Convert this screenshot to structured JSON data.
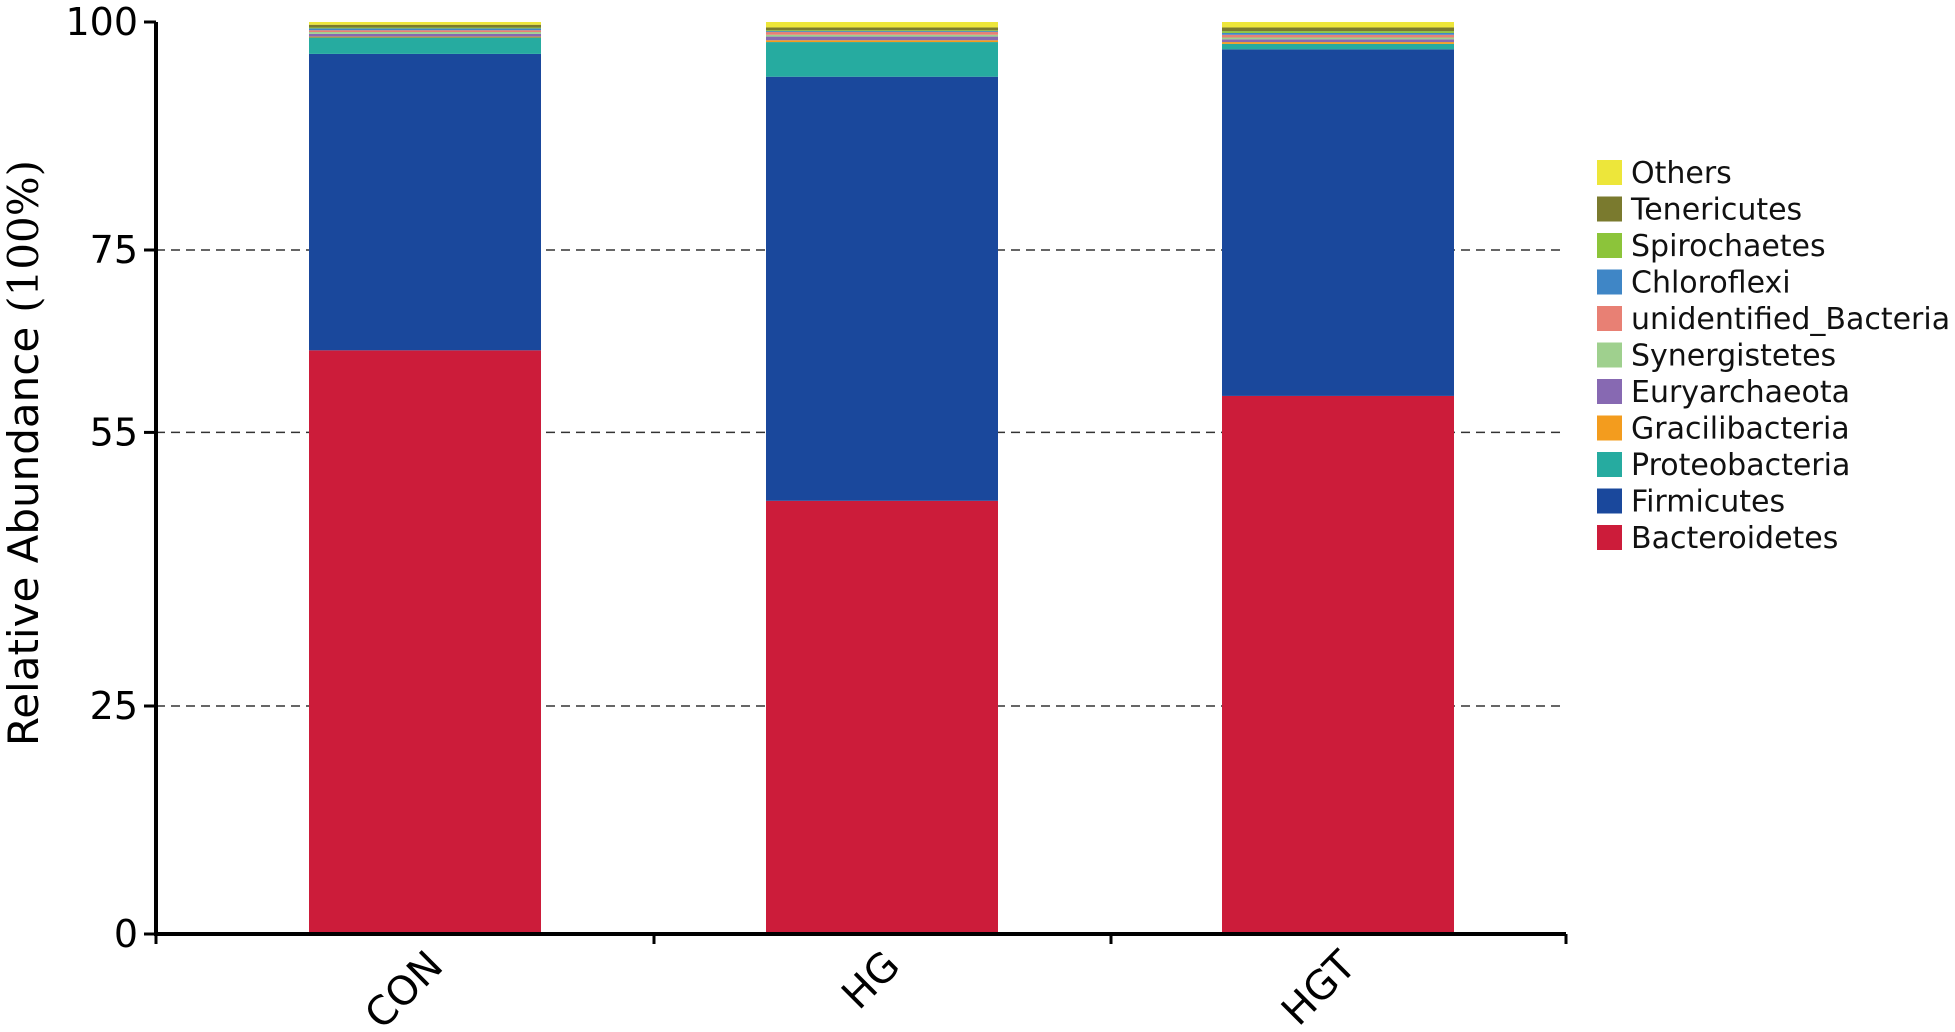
{
  "chart_data": {
    "type": "bar",
    "stacked": true,
    "categories": [
      "CON",
      "HG",
      "HGT"
    ],
    "ylabel": "Relative Abundance",
    "ylabel_unit": "(100%)",
    "yticks": [
      0,
      25,
      55,
      75,
      100
    ],
    "ylim": [
      0,
      100
    ],
    "grid": "dashed horizontal at 25, 55, 75",
    "legend_position": "right",
    "series": [
      {
        "name": "Bacteroidetes",
        "color": "#CC1C3A",
        "values": [
          64.0,
          47.5,
          59.0
        ]
      },
      {
        "name": "Firmicutes",
        "color": "#1A489C",
        "values": [
          32.5,
          46.5,
          38.0
        ]
      },
      {
        "name": "Proteobacteria",
        "color": "#26ABA0",
        "values": [
          1.8,
          3.8,
          0.6
        ]
      },
      {
        "name": "Gracilibacteria",
        "color": "#F39C1E",
        "values": [
          0.1,
          0.2,
          0.2
        ]
      },
      {
        "name": "Euryarchaeota",
        "color": "#8769B2",
        "values": [
          0.3,
          0.4,
          0.3
        ]
      },
      {
        "name": "Synergistetes",
        "color": "#9FD08E",
        "values": [
          0.2,
          0.2,
          0.2
        ]
      },
      {
        "name": "unidentified_Bacteria",
        "color": "#E88074",
        "values": [
          0.2,
          0.3,
          0.3
        ]
      },
      {
        "name": "Chloroflexi",
        "color": "#3F86C6",
        "values": [
          0.2,
          0.1,
          0.2
        ]
      },
      {
        "name": "Spirochaetes",
        "color": "#8CC43A",
        "values": [
          0.1,
          0.1,
          0.2
        ]
      },
      {
        "name": "Tenericutes",
        "color": "#7A7A2E",
        "values": [
          0.3,
          0.3,
          0.4
        ]
      },
      {
        "name": "Others",
        "color": "#EDE63A",
        "values": [
          0.3,
          0.6,
          0.6
        ]
      }
    ]
  }
}
